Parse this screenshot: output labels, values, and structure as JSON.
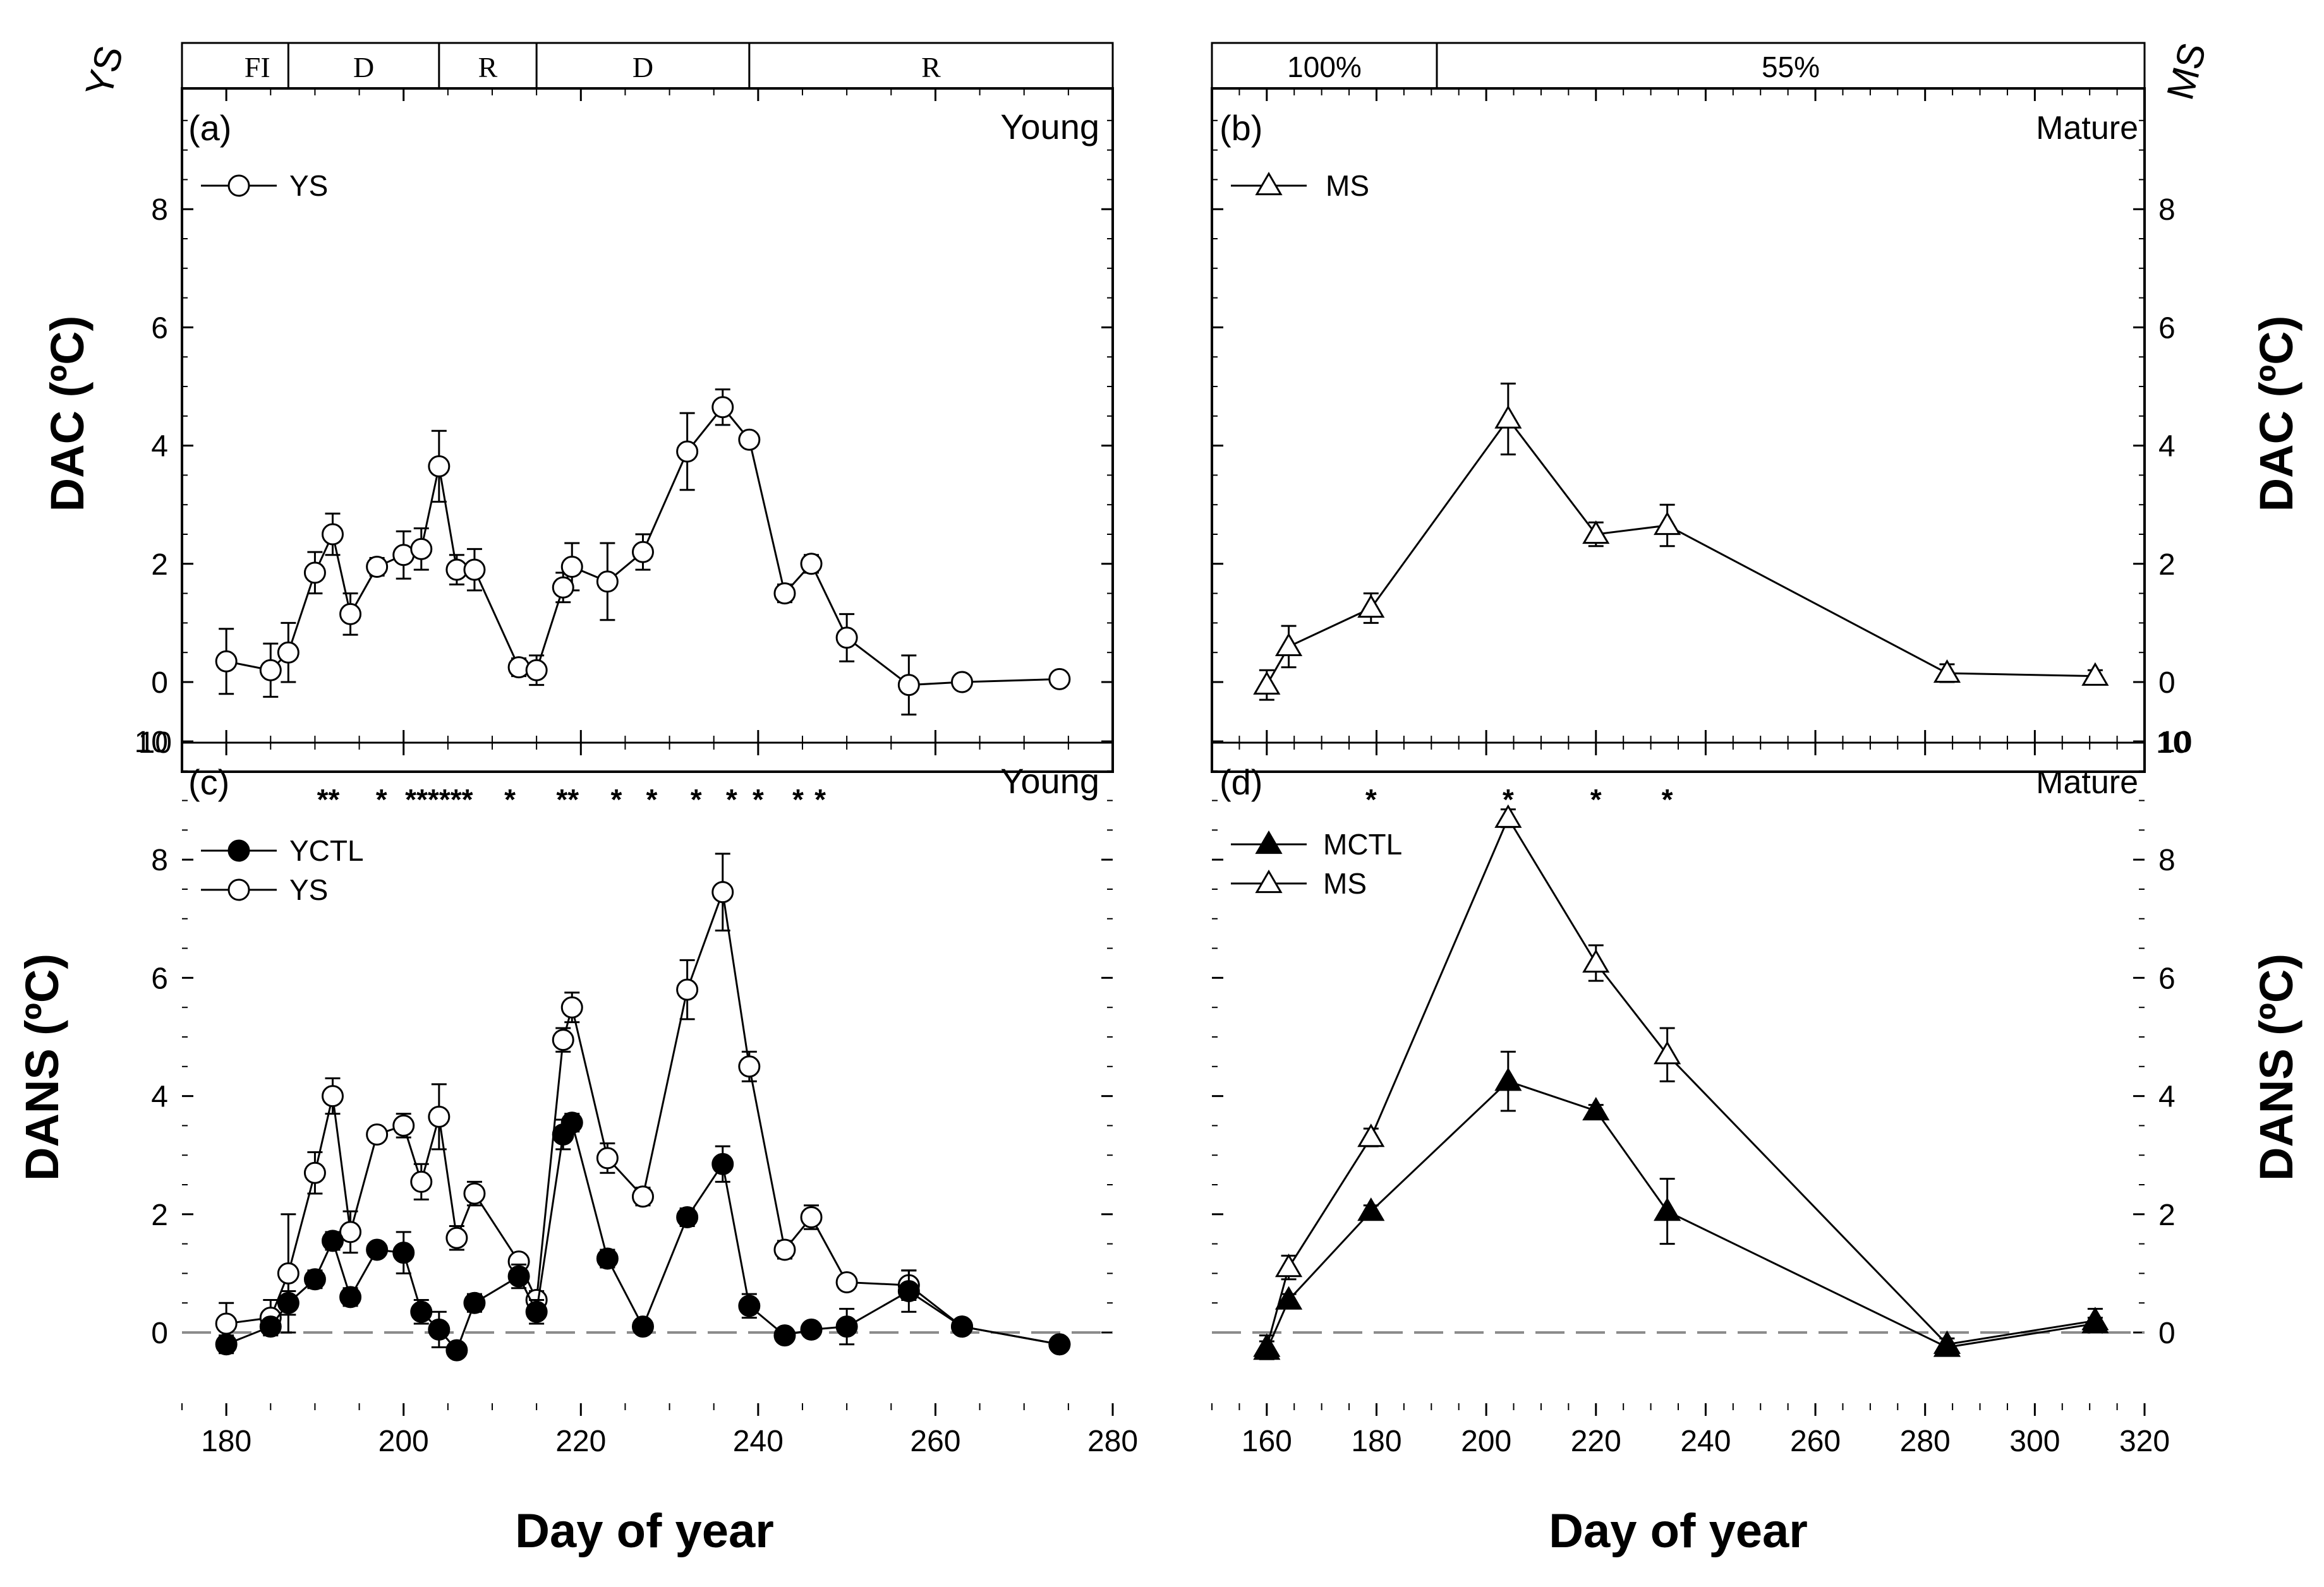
{
  "figure": {
    "x_axis_label_left": "Day of year",
    "x_axis_label_right": "Day of year",
    "y_axis_label_top": "DAC (ºC)",
    "y_axis_label_bottom": "DANS (ºC)",
    "strip_left_label": "YS",
    "strip_right_label": "MS",
    "strip_left_segments": [
      {
        "label": "FI",
        "start": 180,
        "end": 187
      },
      {
        "label": "D",
        "start": 187,
        "end": 204
      },
      {
        "label": "R",
        "start": 204,
        "end": 215
      },
      {
        "label": "D",
        "start": 215,
        "end": 239
      },
      {
        "label": "R",
        "start": 239,
        "end": 280
      }
    ],
    "strip_right_segments": [
      {
        "label": "100%",
        "start": 150,
        "end": 191
      },
      {
        "label": "55%",
        "start": 191,
        "end": 320
      }
    ]
  },
  "chart_data": [
    {
      "id": "a",
      "type": "line",
      "panel_label": "(a)",
      "corner_label": "Young",
      "xlim": [
        175,
        280
      ],
      "ylim": [
        -1,
        10
      ],
      "yticks": [
        0,
        2,
        4,
        6,
        8
      ],
      "ytick_right_extra": "10",
      "legend": [
        {
          "name": "YS",
          "marker": "circle-open"
        }
      ],
      "series": [
        {
          "name": "YS",
          "marker": "circle-open",
          "x": [
            180,
            185,
            187,
            190,
            192,
            194,
            197,
            200,
            202,
            204,
            206,
            208,
            213,
            215,
            218,
            219,
            223,
            227,
            232,
            236,
            239,
            243,
            246,
            250,
            257,
            263,
            274
          ],
          "y": [
            0.35,
            0.2,
            0.5,
            1.85,
            2.5,
            1.15,
            1.95,
            2.15,
            2.25,
            3.65,
            1.9,
            1.9,
            0.25,
            0.2,
            1.6,
            1.95,
            1.7,
            2.2,
            3.9,
            4.65,
            4.1,
            1.5,
            2.0,
            0.75,
            -0.05,
            0.0,
            0.05
          ],
          "err": [
            0.55,
            0.45,
            0.5,
            0.35,
            0.35,
            0.35,
            0.15,
            0.4,
            0.35,
            0.6,
            0.25,
            0.35,
            0.15,
            0.25,
            0.25,
            0.4,
            0.65,
            0.3,
            0.65,
            0.3,
            0.0,
            0.15,
            0.15,
            0.4,
            0.5,
            0.05,
            0.05
          ]
        }
      ]
    },
    {
      "id": "b",
      "type": "line",
      "panel_label": "(b)",
      "corner_label": "Mature",
      "xlim": [
        150,
        320
      ],
      "ylim": [
        -1,
        10
      ],
      "yticks": [
        0,
        2,
        4,
        6,
        8
      ],
      "ytick_right_extra": "10",
      "legend": [
        {
          "name": "MS",
          "marker": "triangle-open"
        }
      ],
      "series": [
        {
          "name": "MS",
          "marker": "triangle-open",
          "x": [
            160,
            164,
            179,
            204,
            220,
            233,
            284,
            311
          ],
          "y": [
            -0.05,
            0.6,
            1.25,
            4.45,
            2.5,
            2.65,
            0.15,
            0.1
          ],
          "err": [
            0.25,
            0.35,
            0.25,
            0.6,
            0.2,
            0.35,
            0.15,
            0.1
          ]
        }
      ]
    },
    {
      "id": "c",
      "type": "line",
      "panel_label": "(c)",
      "corner_label": "Young",
      "xlim": [
        175,
        280
      ],
      "ylim": [
        -1,
        10
      ],
      "yticks": [
        0,
        2,
        4,
        6,
        8,
        10
      ],
      "xticks": [
        180,
        200,
        220,
        240,
        260,
        280
      ],
      "reference_line_y": 0,
      "significance_marks": [
        "**",
        "*",
        "******",
        "*",
        "**",
        "*",
        "*",
        "*",
        "*",
        "*",
        "*",
        "*"
      ],
      "significance_x": [
        191.5,
        197.5,
        204,
        212,
        218.5,
        224,
        228,
        233,
        237,
        240,
        244.5,
        247
      ],
      "legend": [
        {
          "name": "YCTL",
          "marker": "circle-filled"
        },
        {
          "name": "YS",
          "marker": "circle-open"
        }
      ],
      "series": [
        {
          "name": "YS",
          "marker": "circle-open",
          "x": [
            180,
            185,
            187,
            190,
            192,
            194,
            197,
            200,
            202,
            204,
            206,
            208,
            213,
            215,
            218,
            219,
            223,
            227,
            232,
            236,
            239,
            243,
            246,
            250,
            257,
            263,
            274
          ],
          "y": [
            0.15,
            0.25,
            1.0,
            2.7,
            4.0,
            1.7,
            3.35,
            3.5,
            2.55,
            3.65,
            1.6,
            2.35,
            1.2,
            0.55,
            4.95,
            5.5,
            2.95,
            2.3,
            5.8,
            7.45,
            4.5,
            1.4,
            1.95,
            0.85,
            0.8,
            0.1,
            -0.2
          ],
          "err": [
            0.35,
            0.3,
            1.0,
            0.35,
            0.3,
            0.35,
            0.1,
            0.2,
            0.3,
            0.55,
            0.2,
            0.2,
            0.1,
            0.15,
            0.2,
            0.25,
            0.25,
            0.15,
            0.5,
            0.65,
            0.25,
            0.15,
            0.2,
            0.1,
            0.25,
            0.05,
            0.05
          ]
        },
        {
          "name": "YCTL",
          "marker": "circle-filled",
          "x": [
            180,
            185,
            187,
            190,
            192,
            194,
            197,
            200,
            202,
            204,
            206,
            208,
            213,
            215,
            218,
            219,
            223,
            227,
            232,
            236,
            239,
            243,
            246,
            250,
            257,
            263,
            274
          ],
          "y": [
            -0.2,
            0.1,
            0.5,
            0.9,
            1.55,
            0.6,
            1.4,
            1.35,
            0.35,
            0.05,
            -0.3,
            0.5,
            0.95,
            0.35,
            3.35,
            3.55,
            1.25,
            0.1,
            1.95,
            2.85,
            0.45,
            -0.05,
            0.05,
            0.1,
            0.7,
            0.1,
            -0.2
          ],
          "err": [
            0.15,
            0.1,
            0.2,
            0.15,
            0.15,
            0.15,
            0.1,
            0.35,
            0.2,
            0.3,
            0.1,
            0.15,
            0.2,
            0.2,
            0.25,
            0.15,
            0.15,
            0.1,
            0.15,
            0.3,
            0.2,
            0.1,
            0.05,
            0.3,
            0.35,
            0.05,
            0.05
          ]
        }
      ]
    },
    {
      "id": "d",
      "type": "line",
      "panel_label": "(d)",
      "corner_label": "Mature",
      "xlim": [
        150,
        320
      ],
      "ylim": [
        -1,
        10
      ],
      "yticks": [
        0,
        2,
        4,
        6,
        8,
        10
      ],
      "xticks": [
        160,
        180,
        200,
        220,
        240,
        260,
        280,
        300,
        320
      ],
      "reference_line_y": 0,
      "significance_marks": [
        "*",
        "*",
        "*",
        "*"
      ],
      "significance_x": [
        179,
        204,
        220,
        233
      ],
      "legend": [
        {
          "name": "MCTL",
          "marker": "triangle-filled"
        },
        {
          "name": "MS",
          "marker": "triangle-open"
        }
      ],
      "series": [
        {
          "name": "MS",
          "marker": "triangle-open",
          "x": [
            160,
            164,
            179,
            204,
            220,
            233,
            284,
            311
          ],
          "y": [
            -0.25,
            1.1,
            3.3,
            8.7,
            6.25,
            4.7,
            -0.2,
            0.2
          ],
          "err": [
            0.2,
            0.2,
            0.15,
            0.15,
            0.3,
            0.45,
            0.1,
            0.2
          ]
        },
        {
          "name": "MCTL",
          "marker": "triangle-filled",
          "x": [
            160,
            164,
            179,
            204,
            220,
            233,
            284,
            311
          ],
          "y": [
            -0.3,
            0.55,
            2.05,
            4.25,
            3.75,
            2.05,
            -0.25,
            0.15
          ],
          "err": [
            0.15,
            0.1,
            0.1,
            0.5,
            0.1,
            0.55,
            0.05,
            0.1
          ]
        }
      ]
    }
  ]
}
